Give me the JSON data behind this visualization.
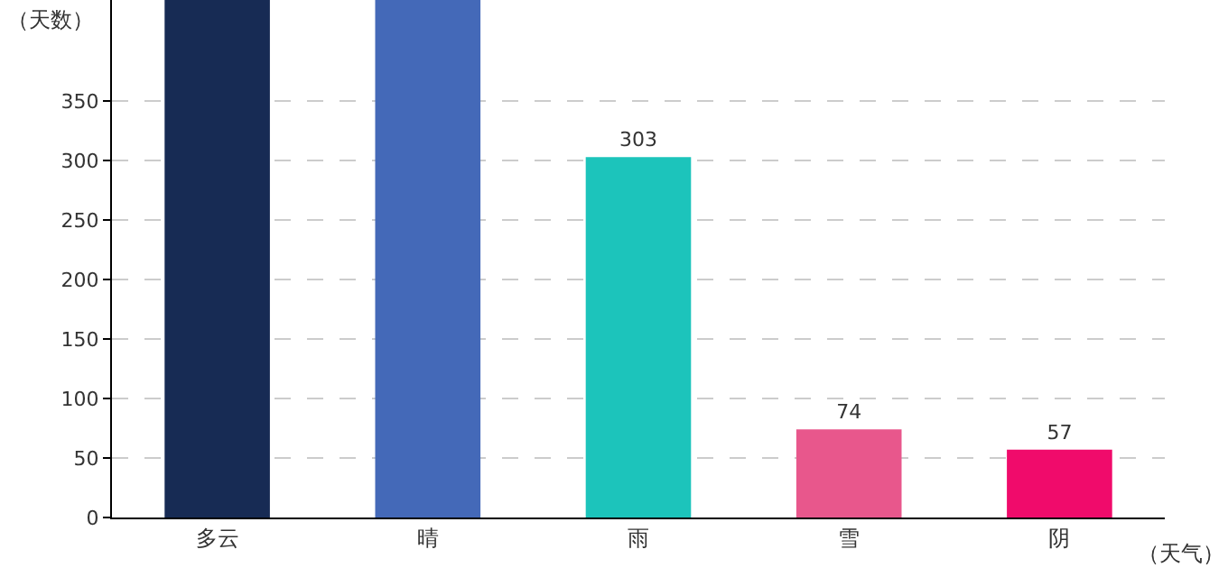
{
  "chart_data": {
    "type": "bar",
    "xlabel": "（天气）",
    "ylabel": "（天数）",
    "categories": [
      "多云",
      "晴",
      "雨",
      "雪",
      "阴"
    ],
    "values": [
      435,
      435,
      303,
      74,
      57
    ],
    "colors": [
      "#172b54",
      "#4469b8",
      "#1cc4bb",
      "#e8578c",
      "#f00b6b"
    ],
    "value_labels": [
      null,
      null,
      "303",
      "74",
      "57"
    ],
    "ylim": [
      0,
      435
    ],
    "yticks": [
      0,
      50,
      100,
      150,
      200,
      250,
      300,
      350
    ],
    "grid": "y",
    "legend": false
  }
}
